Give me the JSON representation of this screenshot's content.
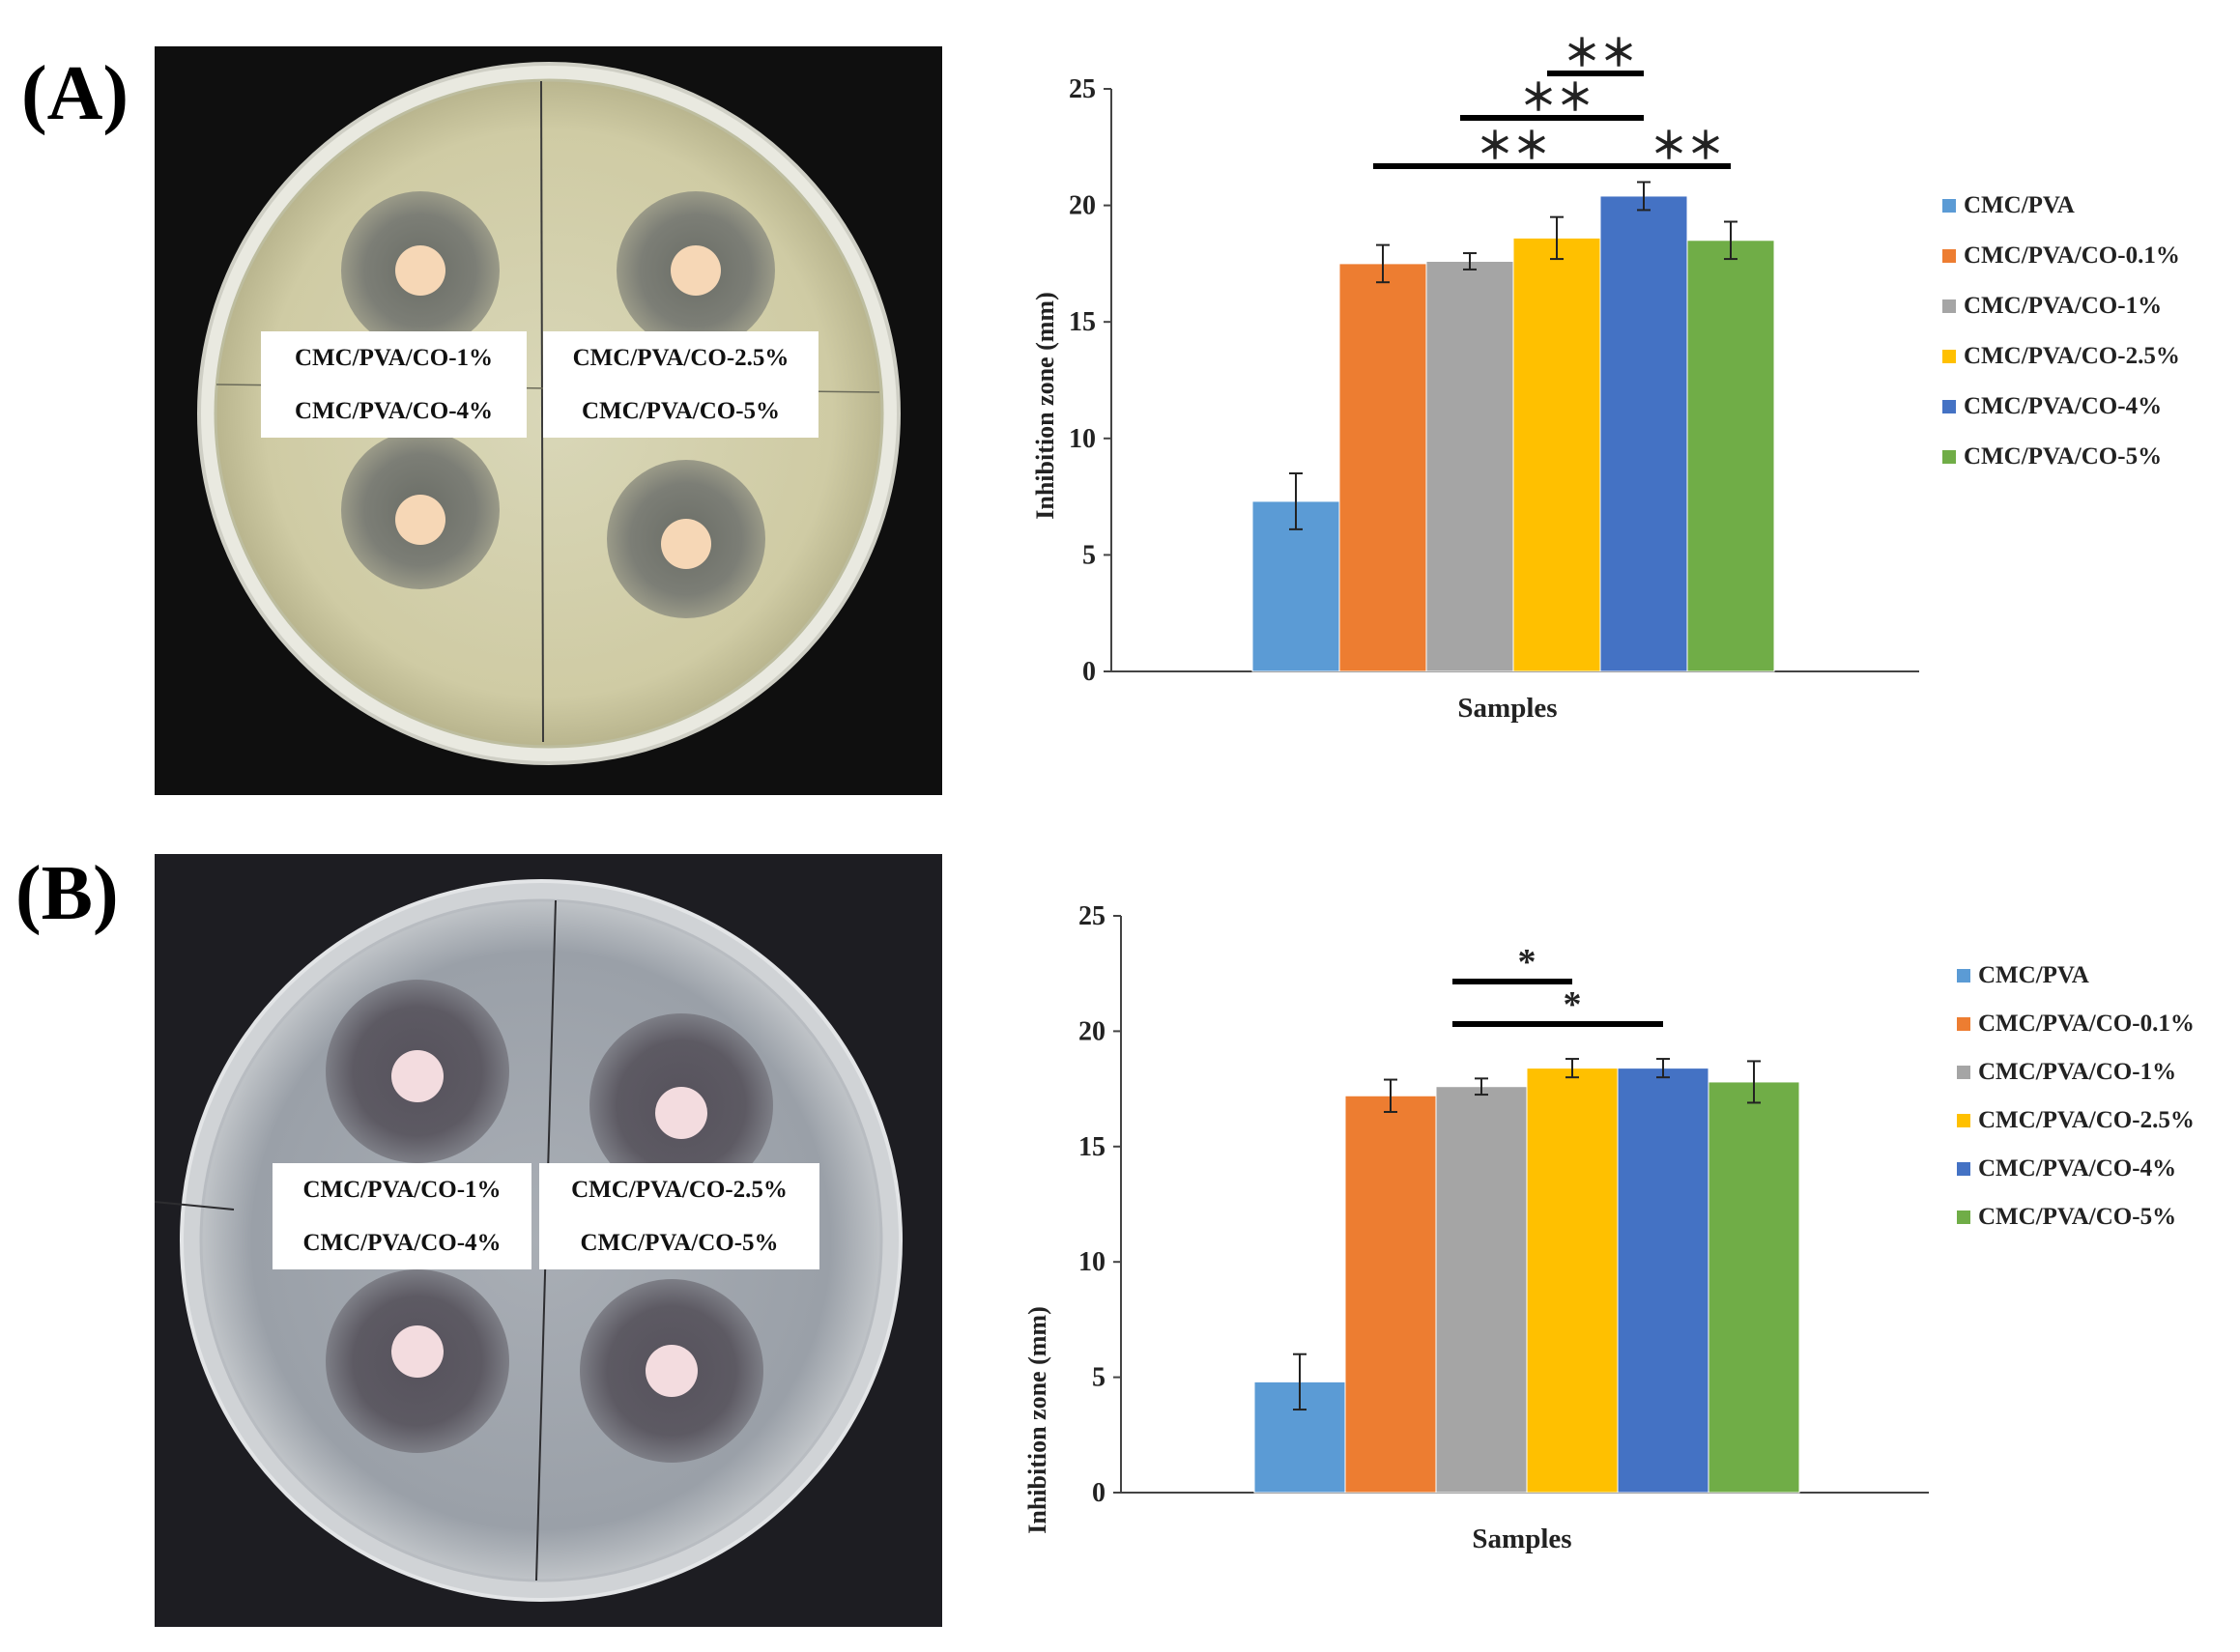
{
  "panels": [
    {
      "letter": "(A)",
      "photo_labels": {
        "top_left": "CMC/PVA/CO-1%",
        "bottom_left": "CMC/PVA/CO-4%",
        "top_right": "CMC/PVA/CO-2.5%",
        "bottom_right": "CMC/PVA/CO-5%"
      }
    },
    {
      "letter": "(B)",
      "photo_labels": {
        "top_left": "CMC/PVA/CO-1%",
        "bottom_left": "CMC/PVA/CO-4%",
        "top_right": "CMC/PVA/CO-2.5%",
        "bottom_right": "CMC/PVA/CO-5%"
      }
    }
  ],
  "colors": {
    "CMC/PVA": "#5b9bd5",
    "CMC/PVA/CO-0.1%": "#ed7d31",
    "CMC/PVA/CO-1%": "#a5a5a5",
    "CMC/PVA/CO-2.5%": "#ffc000",
    "CMC/PVA/CO-4%": "#4472c4",
    "CMC/PVA/CO-5%": "#70ad47"
  },
  "chart_data": [
    {
      "type": "bar",
      "panel": "(A)",
      "xlabel": "Samples",
      "ylabel": "Inhibition  zone (mm)",
      "ylim": [
        0,
        25
      ],
      "yticks": [
        0,
        5,
        10,
        15,
        20,
        25
      ],
      "legend_position": "right",
      "series": [
        {
          "name": "CMC/PVA",
          "value": 7.3,
          "error": 1.2
        },
        {
          "name": "CMC/PVA/CO-0.1%",
          "value": 17.5,
          "error": 0.8
        },
        {
          "name": "CMC/PVA/CO-1%",
          "value": 17.6,
          "error": 0.35
        },
        {
          "name": "CMC/PVA/CO-2.5%",
          "value": 18.6,
          "error": 0.9
        },
        {
          "name": "CMC/PVA/CO-4%",
          "value": 20.4,
          "error": 0.6
        },
        {
          "name": "CMC/PVA/CO-5%",
          "value": 18.5,
          "error": 0.8
        }
      ],
      "significance": [
        {
          "from": 3,
          "to": 4,
          "label": "＊＊",
          "level": 1
        },
        {
          "from": 2,
          "to": 4,
          "label": "＊＊",
          "level": 2
        },
        {
          "from": 1,
          "to": 4,
          "label": "＊＊",
          "level": 3
        },
        {
          "from": 4,
          "to": 5,
          "label": "＊＊",
          "level": 3
        }
      ]
    },
    {
      "type": "bar",
      "panel": "(B)",
      "xlabel": "Samples",
      "ylabel": "Inhibition  zone (mm)",
      "ylim": [
        0,
        25
      ],
      "yticks": [
        0,
        5,
        10,
        15,
        20,
        25
      ],
      "legend_position": "right",
      "series": [
        {
          "name": "CMC/PVA",
          "value": 4.8,
          "error": 1.2
        },
        {
          "name": "CMC/PVA/CO-0.1%",
          "value": 17.2,
          "error": 0.7
        },
        {
          "name": "CMC/PVA/CO-1%",
          "value": 17.6,
          "error": 0.35
        },
        {
          "name": "CMC/PVA/CO-2.5%",
          "value": 18.4,
          "error": 0.4
        },
        {
          "name": "CMC/PVA/CO-4%",
          "value": 18.4,
          "error": 0.4
        },
        {
          "name": "CMC/PVA/CO-5%",
          "value": 17.8,
          "error": 0.9
        }
      ],
      "significance": [
        {
          "from": 2,
          "to": 3,
          "label": "*",
          "level": 2
        },
        {
          "from": 2,
          "to": 4,
          "label": "*",
          "level": 1
        }
      ]
    }
  ]
}
